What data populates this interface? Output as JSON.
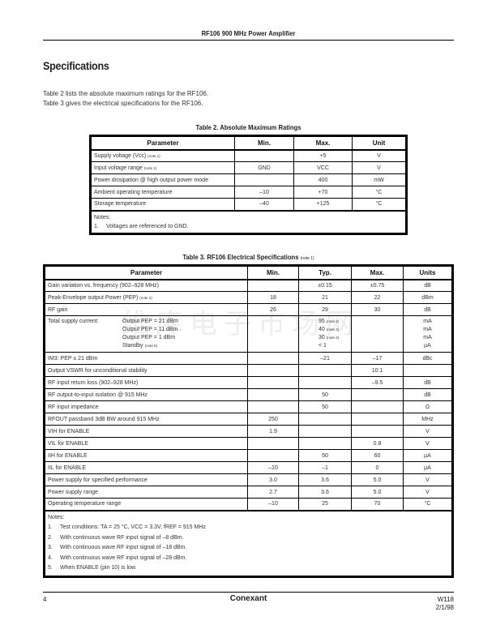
{
  "header": {
    "title": "RF106 900 MHz Power Amplifier"
  },
  "section_title": "Specifications",
  "intro": [
    "Table 2 lists the absolute maximum ratings for the RF106.",
    "Table 3 gives the electrical specifications for the RF106."
  ],
  "table2": {
    "caption": "Table 2.  Absolute Maximum Ratings",
    "headers": [
      "Parameter",
      "Min.",
      "Max.",
      "Unit"
    ],
    "rows": [
      {
        "param": "Supply voltage (Vcc)",
        "note": "(note 1)",
        "min": "",
        "max": "+5",
        "unit": "V"
      },
      {
        "param": "Input voltage range",
        "note": "(note 1)",
        "min": "GND",
        "max": "VCC",
        "unit": "V"
      },
      {
        "param": "Power dissipation @ high output power mode",
        "note": "",
        "min": "",
        "max": "400",
        "unit": "mW"
      },
      {
        "param": "Ambient operating temperature",
        "note": "",
        "min": "–10",
        "max": "+70",
        "unit": "°C"
      },
      {
        "param": "Storage temperature",
        "note": "",
        "min": "–40",
        "max": "+125",
        "unit": "°C"
      }
    ],
    "notes_label": "Notes:",
    "notes": [
      "Voltages are referenced to GND."
    ]
  },
  "table3": {
    "caption": "Table 3.  RF106 Electrical Specifications",
    "caption_note": "(note 1)",
    "headers": [
      "Parameter",
      "Min.",
      "Typ.",
      "Max.",
      "Units"
    ],
    "rows": [
      {
        "param": "Gain variation vs. frequency (902–928 MHz)",
        "note": "",
        "min": "",
        "typ": "±0.15",
        "max": "±0.75",
        "unit": "dB"
      },
      {
        "param": "Peak-Envelope output Power (PEP)",
        "note": "(note 2)",
        "min": "18",
        "typ": "21",
        "max": "22",
        "unit": "dBm"
      },
      {
        "param": "RF gain",
        "note": "",
        "min": "26",
        "typ": "29",
        "max": "30",
        "unit": "dB"
      }
    ],
    "supply": {
      "param": "Total supply current:",
      "conds": [
        "Output PEP = 21 dBm",
        "Output PEP = 11 dBm",
        "Output PEP = 1 dBm",
        "Standby"
      ],
      "cond_notes": [
        "",
        "",
        "",
        "(note 5)"
      ],
      "typ": [
        "95",
        "40",
        "30",
        "< 1"
      ],
      "typ_notes": [
        "(note 2)",
        "(note 3)",
        "(note 4)",
        ""
      ],
      "units": [
        "mA",
        "mA",
        "mA",
        "µA"
      ]
    },
    "rows2": [
      {
        "param": "IM3: PEP ≤ 21 dBm",
        "min": "",
        "typ": "–21",
        "max": "–17",
        "unit": "dBc"
      },
      {
        "param": "Output VSWR for unconditional stability",
        "min": "",
        "typ": "",
        "max": "10:1",
        "unit": ""
      },
      {
        "param": "RF input return loss (902–928 MHz)",
        "min": "",
        "typ": "",
        "max": "–9.5",
        "unit": "dB"
      },
      {
        "param": "RF output-to-input isolation @ 915 MHz",
        "min": "",
        "typ": "50",
        "max": "",
        "unit": "dB"
      },
      {
        "param": "RF input impedance",
        "min": "",
        "typ": "50",
        "max": "",
        "unit": "Ω"
      },
      {
        "param": "RFOUT passband 3dB BW around 915 MHz",
        "min": "250",
        "typ": "",
        "max": "",
        "unit": "MHz"
      },
      {
        "param": "VIH for ENABLE",
        "min": "1.9",
        "typ": "",
        "max": "",
        "unit": "V"
      },
      {
        "param": "VIL for ENABLE",
        "min": "",
        "typ": "",
        "max": "0.8",
        "unit": "V"
      },
      {
        "param": "IIH for ENABLE",
        "min": "",
        "typ": "50",
        "max": "60",
        "unit": "µA"
      },
      {
        "param": "IIL for ENABLE",
        "min": "–10",
        "typ": "–1",
        "max": "0",
        "unit": "µA"
      },
      {
        "param": "Power supply for specified performance",
        "min": "3.0",
        "typ": "3.6",
        "max": "5.0",
        "unit": "V"
      },
      {
        "param": "Power supply range",
        "min": "2.7",
        "typ": "3.6",
        "max": "5.0",
        "unit": "V"
      },
      {
        "param": "Operating temperature range",
        "min": "–10",
        "typ": "25",
        "max": "70",
        "unit": "°C"
      }
    ],
    "notes_label": "Notes:",
    "notes": [
      "Test conditions: TA = 25 °C, VCC = 3.3V, fREF = 915 MHz",
      "With continuous wave RF input signal of –8 dBm.",
      "With continuous wave RF input signal of –18 dBm.",
      "With continuous wave RF input signal of –28 dBm.",
      "When ENABLE (pin 10) is low."
    ]
  },
  "watermark": "维库电子市场网",
  "footer": {
    "page": "4",
    "brand": "Conexant",
    "code": "W118",
    "date": "2/1/98"
  }
}
